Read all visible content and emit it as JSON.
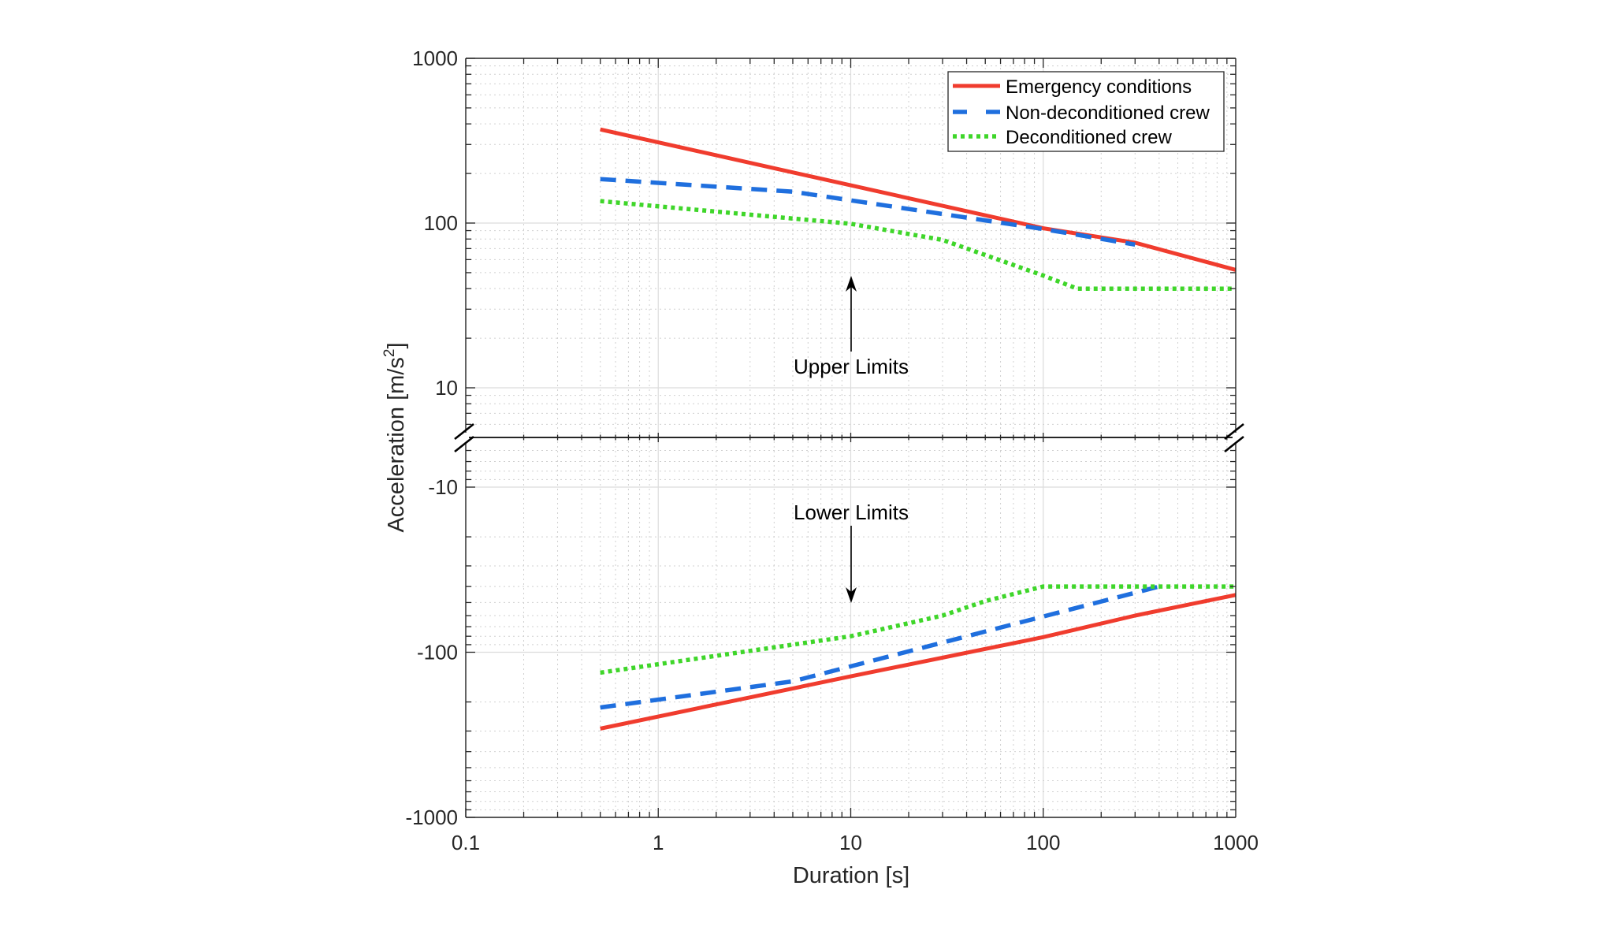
{
  "chart_data": {
    "type": "line",
    "title": "",
    "xlabel": "Duration [s]",
    "ylabel": "Acceleration [m/s2]",
    "ylabel_main": "Acceleration [m/s",
    "ylabel_sup": "2",
    "ylabel_close": "]",
    "x_scale": "log",
    "y_scale": "log (split: positive upper panel, negative lower panel)",
    "xlim": [
      0.1,
      1000
    ],
    "ylim_upper": [
      10,
      1000
    ],
    "ylim_lower": [
      -1000,
      -10
    ],
    "x_ticks": [
      "0.1",
      "1",
      "10",
      "100",
      "1000"
    ],
    "y_ticks_upper": [
      "1000",
      "100",
      "10"
    ],
    "y_ticks_lower": [
      "-10",
      "-100",
      "-1000"
    ],
    "grid": true,
    "legend_position": "top-right",
    "series": [
      {
        "name": "Emergency conditions",
        "color": "#f03c2e",
        "style": "solid",
        "upper": {
          "x": [
            0.5,
            100,
            300,
            1000
          ],
          "y": [
            370,
            93,
            76,
            52
          ]
        },
        "lower": {
          "x": [
            0.5,
            10,
            100,
            300,
            1000
          ],
          "y": [
            -290,
            -140,
            -81,
            -60,
            -45
          ]
        }
      },
      {
        "name": "Non-deconditioned crew",
        "color": "#1f6fde",
        "style": "dashed",
        "upper": {
          "x": [
            0.5,
            5,
            100,
            300
          ],
          "y": [
            185,
            155,
            92,
            74
          ]
        },
        "lower": {
          "x": [
            0.5,
            5,
            400
          ],
          "y": [
            -216,
            -150,
            -40
          ]
        }
      },
      {
        "name": "Deconditioned crew",
        "color": "#3fd62a",
        "style": "dotted",
        "upper": {
          "x": [
            0.5,
            10,
            30,
            100,
            150,
            1000
          ],
          "y": [
            136,
            99,
            79,
            48,
            40,
            40
          ]
        },
        "lower": {
          "x": [
            0.5,
            10,
            30,
            50,
            100,
            1000
          ],
          "y": [
            -133,
            -80,
            -60,
            -49,
            -40,
            -40
          ]
        }
      }
    ],
    "annotations": [
      {
        "text": "Upper Limits",
        "x": 10,
        "arrow": "up"
      },
      {
        "text": "Lower Limits",
        "x": 10,
        "arrow": "down"
      }
    ]
  }
}
